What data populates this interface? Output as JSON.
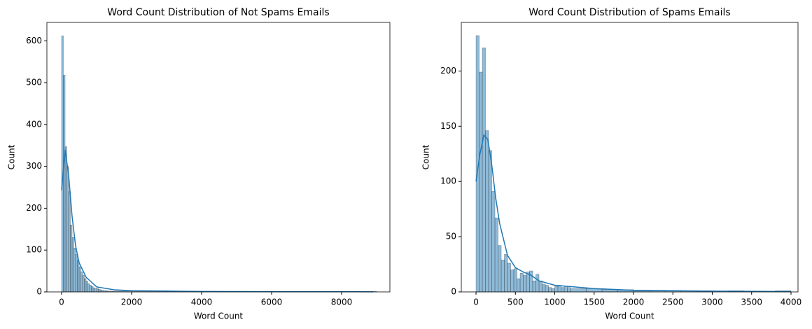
{
  "chart_data": [
    {
      "type": "histogram",
      "title": "Word Count Distribution of  Not Spams Emails",
      "x_label": "Word Count",
      "y_label": "Count",
      "color": "#1f77b4",
      "bins": [
        0,
        50,
        100,
        150,
        200,
        250,
        300,
        350,
        400,
        450,
        500,
        550,
        600,
        650,
        700,
        750,
        800,
        850,
        900,
        950,
        1000,
        1050,
        1100,
        1150,
        1200,
        1250,
        1300,
        1350,
        1400,
        1450,
        1500,
        2000,
        2500,
        3000,
        3500,
        4000,
        4500,
        5000,
        5500,
        6000,
        6500,
        7000,
        7500,
        8000,
        8500,
        9000
      ],
      "values": [
        612,
        518,
        347,
        300,
        240,
        160,
        130,
        105,
        90,
        75,
        60,
        48,
        40,
        32,
        26,
        20,
        16,
        13,
        10,
        8,
        9,
        6,
        5,
        4,
        3,
        3,
        2,
        2,
        2,
        1,
        2,
        1,
        1,
        1,
        1,
        0,
        1,
        0,
        0,
        0,
        0,
        0,
        0,
        0,
        1
      ],
      "kde": {
        "x": [
          0,
          100,
          200,
          300,
          400,
          500,
          700,
          1000,
          1500,
          2000,
          3000,
          4000,
          6000,
          8900
        ],
        "values": [
          243,
          340,
          280,
          180,
          110,
          70,
          35,
          12,
          5,
          3,
          2,
          1,
          0.5,
          0.3
        ]
      },
      "xlim": [
        -420,
        9380
      ],
      "ylim": [
        0,
        644
      ],
      "xticks": [
        0,
        2000,
        4000,
        6000,
        8000
      ],
      "yticks": [
        0,
        100,
        200,
        300,
        400,
        500,
        600
      ]
    },
    {
      "type": "histogram",
      "title": "Word Count Distribution of Spams Emails",
      "x_label": "Word Count",
      "y_label": "Count",
      "color": "#1f77b4",
      "bins": [
        0,
        40,
        80,
        120,
        160,
        200,
        240,
        280,
        320,
        360,
        400,
        440,
        480,
        520,
        560,
        600,
        640,
        680,
        720,
        760,
        800,
        840,
        880,
        920,
        960,
        1000,
        1040,
        1080,
        1120,
        1160,
        1200,
        1400,
        1600,
        1800,
        2000,
        2200,
        2400,
        2600,
        2800,
        3000,
        3200,
        3400,
        3600,
        3800,
        4000
      ],
      "values": [
        232,
        199,
        221,
        146,
        128,
        91,
        67,
        42,
        29,
        34,
        26,
        20,
        21,
        12,
        17,
        15,
        18,
        19,
        10,
        16,
        10,
        7,
        6,
        4,
        3,
        5,
        6,
        4,
        5,
        4,
        3,
        3,
        2,
        2,
        1,
        1,
        1,
        1,
        1,
        0,
        1,
        0,
        0,
        1
      ],
      "kde": {
        "x": [
          0,
          50,
          100,
          150,
          200,
          250,
          300,
          400,
          500,
          600,
          700,
          800,
          1000,
          1500,
          2000,
          3000,
          4000
        ],
        "values": [
          100,
          125,
          142,
          138,
          115,
          85,
          62,
          33,
          22,
          18,
          15,
          10,
          6,
          3,
          1.5,
          0.7,
          0.3
        ]
      },
      "xlim": [
        -187,
        4089
      ],
      "ylim": [
        0,
        244
      ],
      "xticks": [
        0,
        500,
        1000,
        1500,
        2000,
        2500,
        3000,
        3500,
        4000
      ],
      "yticks": [
        0,
        50,
        100,
        150,
        200
      ]
    }
  ]
}
